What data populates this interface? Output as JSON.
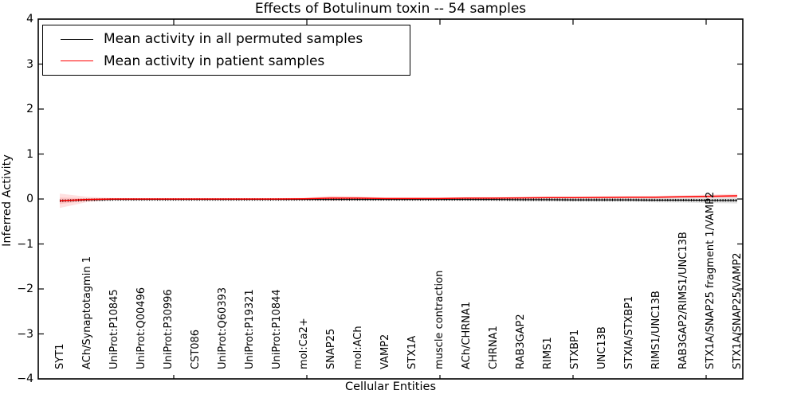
{
  "title": "Effects of Botulinum toxin -- 54 samples",
  "axes": {
    "ylabel": "Inferred Activity",
    "xlabel": "Cellular Entities",
    "yticks": [
      "4",
      "3",
      "2",
      "1",
      "0",
      "−1",
      "−2",
      "−3",
      "−4"
    ],
    "ylim": [
      -4,
      4
    ],
    "grid": false
  },
  "legend": {
    "position": "upper left",
    "items": [
      {
        "label": "Mean activity in all permuted samples",
        "color": "#000000"
      },
      {
        "label": "Mean activity in patient samples",
        "color": "#ff0000"
      }
    ]
  },
  "chart_data": {
    "type": "line",
    "title": "Effects of Botulinum toxin -- 54 samples",
    "xlabel": "Cellular Entities",
    "ylabel": "Inferred Activity",
    "ylim": [
      -4,
      4
    ],
    "legend_position": "upper left",
    "grid": false,
    "categories": [
      "SYT1",
      "ACh/Synaptotagmin 1",
      "UniProt:P10845",
      "UniProt:Q00496",
      "UniProt:P30996",
      "CST086",
      "UniProt:Q60393",
      "UniProt:P19321",
      "UniProt:P10844",
      "mol:Ca2+",
      "SNAP25",
      "mol:ACh",
      "VAMP2",
      "STX1A",
      "muscle contraction",
      "ACh/CHRNA1",
      "CHRNA1",
      "RAB3GAP2",
      "RIMS1",
      "STXBP1",
      "UNC13B",
      "STXIA/STXBP1",
      "RIMS1/UNC13B",
      "RAB3GAP2/RIMS1/UNC13B",
      "STX1A/SNAP25 fragment 1/VAMP2",
      "STX1A/SNAP25/VAMP2"
    ],
    "series": [
      {
        "name": "Mean activity in all permuted samples",
        "color": "#000000",
        "line_style": "solid-with-tick-markers",
        "values": [
          -0.04,
          -0.02,
          -0.01,
          -0.01,
          -0.01,
          -0.01,
          -0.01,
          -0.01,
          -0.01,
          -0.01,
          -0.01,
          -0.01,
          -0.01,
          -0.01,
          -0.01,
          -0.01,
          -0.01,
          -0.015,
          -0.015,
          -0.02,
          -0.02,
          -0.02,
          -0.025,
          -0.025,
          -0.03,
          -0.03
        ],
        "band_halfwidth": [
          0.02,
          0.015,
          0.01,
          0.01,
          0.01,
          0.01,
          0.01,
          0.01,
          0.01,
          0.01,
          0.02,
          0.02,
          0.02,
          0.02,
          0.02,
          0.025,
          0.03,
          0.03,
          0.035,
          0.035,
          0.04,
          0.04,
          0.05,
          0.055,
          0.06,
          0.07
        ],
        "band_color": "rgba(0,0,0,0.10)"
      },
      {
        "name": "Mean activity in patient samples",
        "color": "#ff0000",
        "line_style": "solid",
        "values": [
          -0.04,
          -0.01,
          0.0,
          0.0,
          0.0,
          0.0,
          0.0,
          0.0,
          0.0,
          0.005,
          0.02,
          0.02,
          0.01,
          0.01,
          0.01,
          0.02,
          0.02,
          0.025,
          0.03,
          0.03,
          0.035,
          0.04,
          0.04,
          0.05,
          0.06,
          0.07
        ],
        "band_halfwidth": [
          0.16,
          0.06,
          0.02,
          0.015,
          0.015,
          0.015,
          0.015,
          0.015,
          0.015,
          0.02,
          0.05,
          0.04,
          0.02,
          0.02,
          0.02,
          0.02,
          0.02,
          0.02,
          0.02,
          0.02,
          0.025,
          0.025,
          0.03,
          0.03,
          0.04,
          0.045
        ],
        "band_color": "rgba(255,0,0,0.12)"
      }
    ]
  }
}
